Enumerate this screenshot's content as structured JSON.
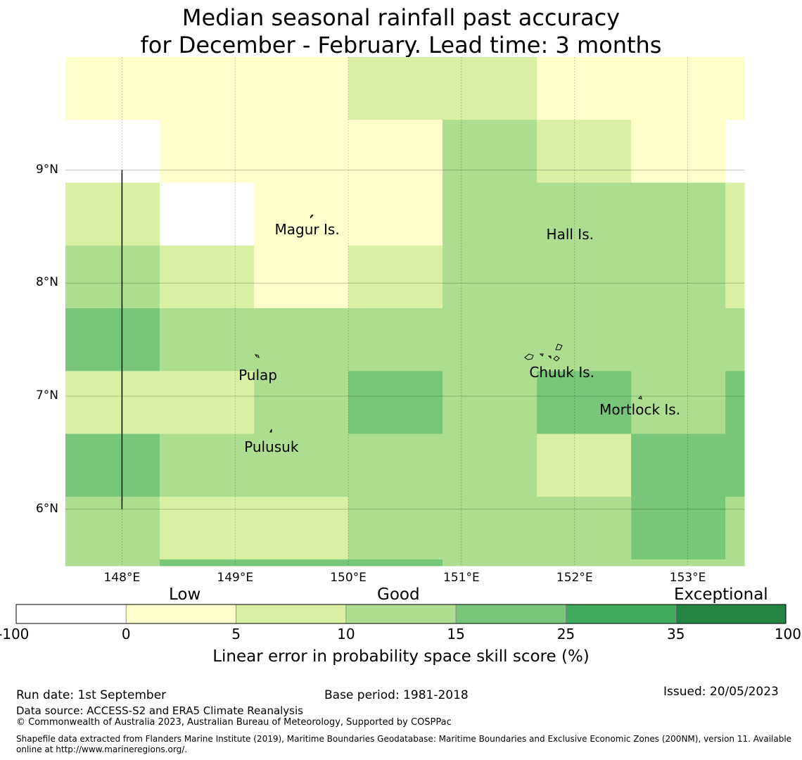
{
  "title": {
    "line1": "Median seasonal rainfall past accuracy",
    "line2": "for December - February. Lead time: 3 months"
  },
  "map": {
    "lon_range": [
      147.5,
      153.5
    ],
    "lat_range": [
      5.5,
      10.0
    ],
    "lon_ticks": [
      {
        "value": 148,
        "label": "148°E"
      },
      {
        "value": 149,
        "label": "149°E"
      },
      {
        "value": 150,
        "label": "150°E"
      },
      {
        "value": 151,
        "label": "151°E"
      },
      {
        "value": 152,
        "label": "152°E"
      },
      {
        "value": 153,
        "label": "153°E"
      }
    ],
    "lat_ticks": [
      {
        "value": 9,
        "label": "9°N"
      },
      {
        "value": 8,
        "label": "8°N"
      },
      {
        "value": 7,
        "label": "7°N"
      },
      {
        "value": 6,
        "label": "6°N"
      }
    ],
    "grid_lon_edges": [
      147.5,
      148.333,
      149.167,
      150.0,
      150.833,
      151.667,
      152.5,
      153.333,
      153.5
    ],
    "grid_lat_edges": [
      10.0,
      9.444,
      8.889,
      8.333,
      7.778,
      7.222,
      6.667,
      6.111,
      5.556,
      5.5
    ],
    "skill_classes": [
      [
        1,
        1,
        1,
        2,
        2,
        1,
        1,
        1
      ],
      [
        0,
        1,
        1,
        1,
        3,
        2,
        1,
        0
      ],
      [
        2,
        0,
        1,
        1,
        3,
        3,
        3,
        2
      ],
      [
        3,
        2,
        1,
        2,
        3,
        3,
        3,
        2
      ],
      [
        4,
        3,
        3,
        3,
        3,
        3,
        3,
        3
      ],
      [
        2,
        2,
        3,
        4,
        3,
        4,
        3,
        4
      ],
      [
        4,
        3,
        3,
        3,
        3,
        2,
        4,
        4
      ],
      [
        3,
        2,
        2,
        3,
        3,
        3,
        4,
        3
      ],
      [
        3,
        4,
        4,
        4,
        3,
        3,
        3,
        3
      ]
    ],
    "class_colors": [
      "#ffffff",
      "#ffffcc",
      "#d9f0a3",
      "#addd8e",
      "#78c679",
      "#41ab5d",
      "#238443"
    ],
    "meridian_line": {
      "lon": 148.0,
      "lat_from": 6.0,
      "lat_to": 9.0
    },
    "islands": [
      {
        "name": "Magur Is.",
        "lon": 149.35,
        "lat": 8.48
      },
      {
        "name": "Hall Is.",
        "lon": 151.75,
        "lat": 8.44
      },
      {
        "name": "Pulap",
        "lon": 149.03,
        "lat": 7.19
      },
      {
        "name": "Chuuk Is.",
        "lon": 151.6,
        "lat": 7.22
      },
      {
        "name": "Mortlock Is.",
        "lon": 152.22,
        "lat": 6.89
      },
      {
        "name": "Pulusuk",
        "lon": 149.08,
        "lat": 6.56
      }
    ]
  },
  "legend": {
    "categories": [
      "Low",
      "Good",
      "Exceptional"
    ],
    "boundaries": [
      "-100",
      "0",
      "5",
      "10",
      "15",
      "25",
      "35",
      "100"
    ],
    "label": "Linear error in probability space skill score (%)"
  },
  "footer": {
    "run_date": "Run date: 1st September",
    "base_period": "Base period: 1981-2018",
    "issued": "Issued: 20/05/2023",
    "data_source": "Data source: ACCESS-S2 and ERA5 Climate Reanalysis",
    "copyright": "© Commonwealth of Australia 2023, Australian Bureau of Meteorology, Supported by COSPPac",
    "shapefile_line1": "Shapefile data extracted from Flanders Marine Institute (2019), Maritime Boundaries Geodatabase: Maritime Boundaries and Exclusive Economic Zones (200NM), version 11. Available",
    "shapefile_line2": "online at http://www.marineregions.org/."
  }
}
